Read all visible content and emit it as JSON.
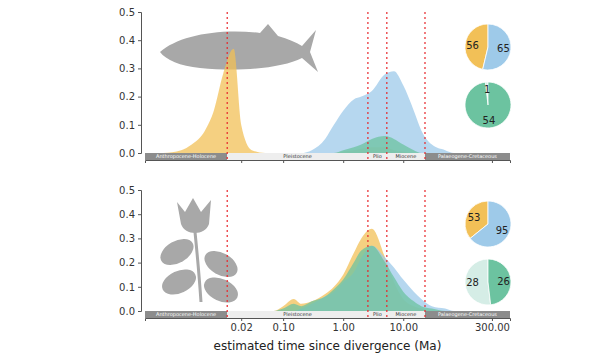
{
  "chart_data": [
    {
      "type": "area",
      "log": "x",
      "tick_labels": "y",
      "xlim": [
        0.0005,
        600
      ],
      "xticks": [
        0.02,
        0.1,
        1,
        10,
        300
      ],
      "ylim": [
        0,
        0.5
      ],
      "yticks": [
        {
          "value": 0,
          "label": "0.0"
        },
        0.1,
        0.2,
        0.3,
        0.4,
        0.5
      ],
      "boundaries": [
        0.0117,
        2.58,
        5.33,
        23.03
      ],
      "period_labels": [
        "Anthropocene-Holocene",
        "Pleistocene",
        "Plio",
        "Miocene",
        "Palaeogene-Cretaceous"
      ],
      "x": [
        0.001,
        0.002,
        0.003,
        0.005,
        0.007,
        0.01,
        0.015,
        0.02,
        0.03,
        0.05,
        0.07,
        0.1,
        0.15,
        0.2,
        0.3,
        0.5,
        0.7,
        1,
        1.5,
        2,
        3,
        5,
        7,
        10,
        15,
        20,
        30,
        50,
        70,
        100
      ],
      "series": [
        {
          "color": "#f2c057",
          "values": [
            0,
            0.01,
            0.03,
            0.08,
            0.15,
            0.28,
            0.37,
            0.1,
            0.01,
            0,
            0,
            0,
            0,
            0,
            0,
            0,
            0,
            0.005,
            0.01,
            0.015,
            0.02,
            0.02,
            0.01,
            0.005,
            0,
            0,
            0,
            0,
            0,
            0
          ]
        },
        {
          "color": "#9ecae9",
          "values": [
            0,
            0,
            0,
            0,
            0,
            0,
            0,
            0,
            0,
            0,
            0,
            0,
            0,
            0,
            0.01,
            0.05,
            0.1,
            0.15,
            0.19,
            0.2,
            0.22,
            0.28,
            0.29,
            0.24,
            0.15,
            0.08,
            0.03,
            0.01,
            0,
            0
          ]
        },
        {
          "color": "#6cc3a0",
          "values": [
            0,
            0,
            0,
            0,
            0,
            0,
            0,
            0,
            0,
            0,
            0,
            0,
            0,
            0,
            0,
            0,
            0,
            0.01,
            0.02,
            0.03,
            0.05,
            0.06,
            0.05,
            0.03,
            0.01,
            0,
            0,
            0,
            0,
            0
          ]
        }
      ]
    },
    {
      "type": "pie",
      "values": [
        56,
        65
      ],
      "colors": [
        "#f2c057",
        "#9ecae9"
      ],
      "data_labels": true
    },
    {
      "type": "pie",
      "values": [
        1,
        54
      ],
      "colors": [
        "#d5ede6",
        "#6cc3a0"
      ],
      "data_labels": true
    },
    {
      "type": "area",
      "log": "x",
      "xlim": [
        0.0005,
        600
      ],
      "xticks": [
        0.02,
        {
          "value": 0.1,
          "label": "0.10"
        },
        {
          "value": 1,
          "label": "1.00"
        },
        {
          "value": 10,
          "label": "10.00"
        },
        {
          "value": 300,
          "label": "300.00"
        }
      ],
      "ylim": [
        0,
        0.5
      ],
      "yticks": [
        {
          "value": 0,
          "label": "0.0"
        },
        0.1,
        0.2,
        0.3,
        0.4,
        0.5
      ],
      "x_label": "estimated time since divergence (Ma)",
      "boundaries": [
        0.0117,
        2.58,
        5.33,
        23.03
      ],
      "period_labels": [
        "Anthropocene-Holocene",
        "Pleistocene",
        "Plio",
        "Miocene",
        "Palaeogene-Cretaceous"
      ],
      "x": [
        0.001,
        0.002,
        0.003,
        0.005,
        0.007,
        0.01,
        0.015,
        0.02,
        0.03,
        0.05,
        0.07,
        0.1,
        0.15,
        0.2,
        0.3,
        0.5,
        0.7,
        1,
        1.5,
        2,
        3,
        5,
        7,
        10,
        15,
        20,
        30,
        50,
        70,
        100
      ],
      "series": [
        {
          "color": "#f2c057",
          "values": [
            0,
            0,
            0,
            0,
            0,
            0,
            0,
            0,
            0,
            0,
            0,
            0.02,
            0.05,
            0.03,
            0.04,
            0.07,
            0.1,
            0.15,
            0.24,
            0.3,
            0.34,
            0.22,
            0.12,
            0.05,
            0.02,
            0.01,
            0,
            0,
            0,
            0
          ]
        },
        {
          "color": "#9ecae9",
          "values": [
            0,
            0,
            0,
            0,
            0,
            0,
            0,
            0,
            0,
            0,
            0,
            0,
            0,
            0.01,
            0.03,
            0.06,
            0.08,
            0.12,
            0.16,
            0.22,
            0.27,
            0.22,
            0.18,
            0.13,
            0.08,
            0.05,
            0.02,
            0.01,
            0,
            0
          ]
        },
        {
          "color": "#6cc3a0",
          "values": [
            0,
            0,
            0,
            0,
            0,
            0,
            0,
            0,
            0,
            0,
            0,
            0.01,
            0.03,
            0.02,
            0.04,
            0.06,
            0.09,
            0.13,
            0.2,
            0.25,
            0.27,
            0.2,
            0.14,
            0.08,
            0.04,
            0.02,
            0.01,
            0,
            0,
            0
          ]
        }
      ]
    },
    {
      "type": "pie",
      "values": [
        53,
        95
      ],
      "colors": [
        "#f2c057",
        "#9ecae9"
      ],
      "data_labels": true
    },
    {
      "type": "pie",
      "values": [
        28,
        26
      ],
      "colors": [
        "#d5ede6",
        "#6cc3a0"
      ],
      "data_labels": true
    }
  ]
}
